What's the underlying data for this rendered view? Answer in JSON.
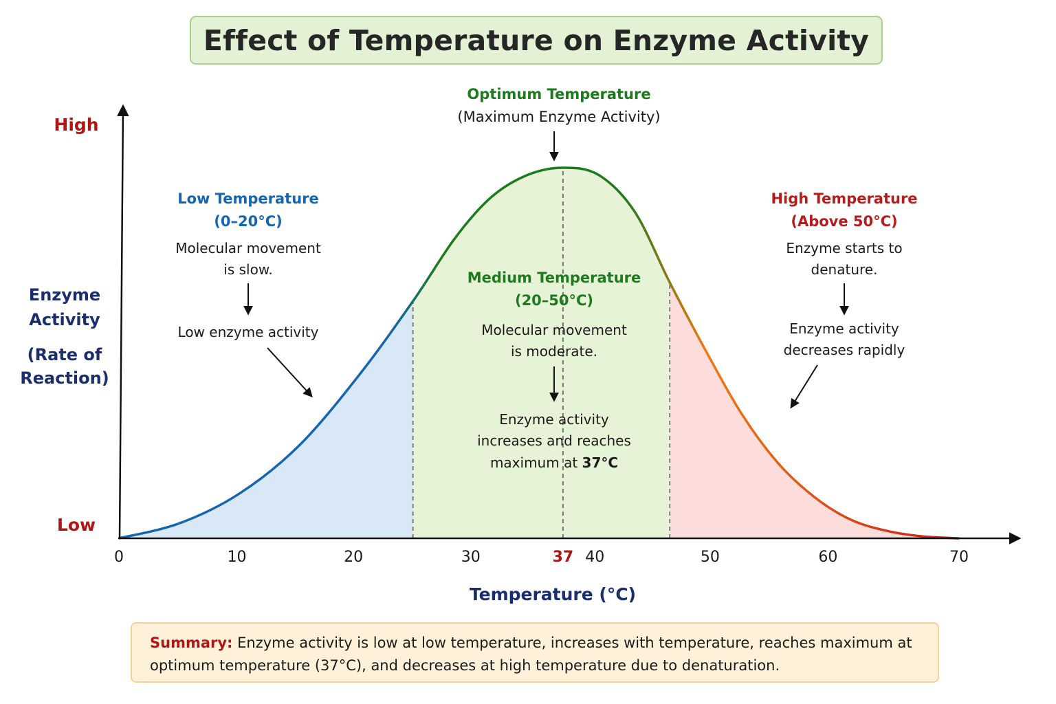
{
  "title": "Effect of Temperature on Enzyme Activity",
  "colors": {
    "low_zone": "#1565b0",
    "medium_zone": "#1d7a1d",
    "high_zone": "#b71c1c",
    "axis_title": "#1a2e6e",
    "low_fill": "#d9e8f6",
    "medium_fill": "#e6f3d7",
    "high_fill": "#fddcdc"
  },
  "chart_data": {
    "type": "area",
    "xlabel": "Temperature (°C)",
    "ylabel_lines": [
      "Enzyme",
      "Activity",
      "(Rate of",
      "Reaction)"
    ],
    "x_ticks": [
      0,
      10,
      20,
      30,
      37,
      40,
      50,
      60,
      70
    ],
    "highlight_tick": 37,
    "xlim": [
      0,
      70
    ],
    "y_qualitative_labels": {
      "high": "High",
      "low": "Low"
    },
    "ylim": [
      0,
      1
    ],
    "grid": false,
    "optimum": 37,
    "zone_boundaries": [
      24.5,
      45.9
    ],
    "curve": {
      "x": [
        0,
        5,
        10,
        15,
        20,
        24.5,
        28,
        31,
        34,
        37,
        40,
        43,
        45.9,
        49,
        52,
        55,
        58,
        61,
        64,
        67,
        70
      ],
      "y": [
        0.0,
        0.04,
        0.12,
        0.25,
        0.44,
        0.64,
        0.81,
        0.92,
        0.98,
        1.0,
        0.98,
        0.88,
        0.69,
        0.5,
        0.33,
        0.2,
        0.11,
        0.05,
        0.02,
        0.005,
        0.0
      ]
    }
  },
  "annotations": {
    "optimum": {
      "heading": "Optimum Temperature",
      "sub": "(Maximum Enzyme Activity)"
    },
    "low": {
      "heading": "Low Temperature",
      "range": "(0–20°C)",
      "line1": "Molecular movement",
      "line2": "is slow.",
      "result": "Low enzyme activity"
    },
    "medium": {
      "heading": "Medium Temperature",
      "range": "(20–50°C)",
      "line1": "Molecular movement",
      "line2": "is moderate.",
      "result1": "Enzyme activity",
      "result2": "increases and reaches",
      "result3_prefix": "maximum at ",
      "result3_bold": "37°C"
    },
    "high": {
      "heading": "High Temperature",
      "range": "(Above 50°C)",
      "line1": "Enzyme starts to",
      "line2": "denature.",
      "result1": "Enzyme activity",
      "result2": "decreases rapidly"
    }
  },
  "summary": {
    "label": "Summary:",
    "text": " Enzyme activity is low at low temperature, increases with temperature, reaches maximum at optimum temperature (37°C), and decreases at high temperature due to denaturation."
  }
}
